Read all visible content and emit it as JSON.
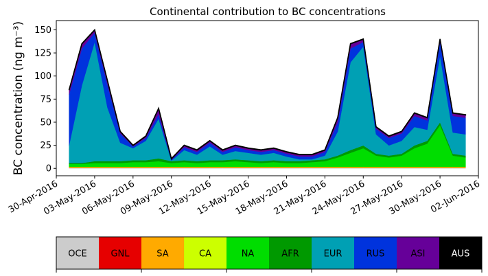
{
  "chart_data": {
    "type": "stacked_area",
    "title": "Continental contribution to BC concentrations",
    "y_label": "BC concentration (ng m⁻³)",
    "x": [
      "2016-05-01",
      "2016-05-02",
      "2016-05-03",
      "2016-05-04",
      "2016-05-05",
      "2016-05-06",
      "2016-05-07",
      "2016-05-08",
      "2016-05-09",
      "2016-05-10",
      "2016-05-11",
      "2016-05-12",
      "2016-05-13",
      "2016-05-14",
      "2016-05-15",
      "2016-05-16",
      "2016-05-17",
      "2016-05-18",
      "2016-05-19",
      "2016-05-20",
      "2016-05-21",
      "2016-05-22",
      "2016-05-23",
      "2016-05-24",
      "2016-05-25",
      "2016-05-26",
      "2016-05-27",
      "2016-05-28",
      "2016-05-29",
      "2016-05-30",
      "2016-05-31",
      "2016-06-01"
    ],
    "xlim": [
      "2016-04-30",
      "2016-06-02"
    ],
    "xticks": [
      {
        "value": "2016-04-30",
        "label": "30-Apr-2016"
      },
      {
        "value": "2016-05-03",
        "label": "03-May-2016"
      },
      {
        "value": "2016-05-06",
        "label": "06-May-2016"
      },
      {
        "value": "2016-05-09",
        "label": "09-May-2016"
      },
      {
        "value": "2016-05-12",
        "label": "12-May-2016"
      },
      {
        "value": "2016-05-15",
        "label": "15-May-2016"
      },
      {
        "value": "2016-05-18",
        "label": "18-May-2016"
      },
      {
        "value": "2016-05-21",
        "label": "21-May-2016"
      },
      {
        "value": "2016-05-24",
        "label": "24-May-2016"
      },
      {
        "value": "2016-05-27",
        "label": "27-May-2016"
      },
      {
        "value": "2016-05-30",
        "label": "30-May-2016"
      },
      {
        "value": "2016-06-02",
        "label": "02-Jun-2016"
      }
    ],
    "ylim": [
      -8,
      160
    ],
    "yticks": [
      0,
      25,
      50,
      75,
      100,
      125,
      150
    ],
    "series": [
      {
        "name": "OCE",
        "color": "#cccccc",
        "values": [
          0.5,
          0.5,
          0.5,
          0.5,
          0.5,
          0.5,
          0.5,
          0.5,
          0.5,
          0.5,
          0.5,
          0.5,
          0.5,
          0.5,
          0.5,
          0.5,
          0.5,
          0.5,
          0.5,
          0.5,
          0.5,
          0.5,
          0.5,
          0.5,
          0.5,
          0.5,
          0.5,
          0.5,
          0.5,
          0.5,
          0.5,
          0.5
        ]
      },
      {
        "name": "GNL",
        "color": "#e60000",
        "values": [
          0.3,
          0.3,
          0.3,
          0.3,
          0.3,
          0.3,
          0.3,
          0.3,
          0.3,
          0.3,
          0.3,
          0.3,
          0.3,
          0.3,
          0.3,
          0.3,
          0.3,
          0.3,
          0.3,
          0.3,
          0.3,
          0.3,
          0.3,
          0.3,
          0.3,
          0.3,
          0.3,
          0.3,
          0.3,
          0.3,
          0.3,
          0.3
        ]
      },
      {
        "name": "SA",
        "color": "#ffaa00",
        "values": [
          0.5,
          0.5,
          0.5,
          0.5,
          0.5,
          0.5,
          0.5,
          0.5,
          0.5,
          0.5,
          0.5,
          0.5,
          0.5,
          0.5,
          0.5,
          0.5,
          0.5,
          0.5,
          0.5,
          0.5,
          0.5,
          0.5,
          0.5,
          0.5,
          0.5,
          0.5,
          0.5,
          0.5,
          0.5,
          0.5,
          0.5,
          0.5
        ]
      },
      {
        "name": "CA",
        "color": "#ccff00",
        "values": [
          0.5,
          0.5,
          0.5,
          0.5,
          0.5,
          0.5,
          0.5,
          0.5,
          0.5,
          0.5,
          0.5,
          0.5,
          0.5,
          0.5,
          0.5,
          0.5,
          0.5,
          0.5,
          0.5,
          0.5,
          0.5,
          0.5,
          0.5,
          0.5,
          0.5,
          0.5,
          0.5,
          0.5,
          0.5,
          0.5,
          0.5,
          0.5
        ]
      },
      {
        "name": "NA",
        "color": "#00dd00",
        "values": [
          3,
          3,
          4,
          4,
          4,
          5,
          5,
          6,
          4,
          5,
          4,
          5,
          5,
          6,
          5,
          4,
          5,
          4,
          4,
          5,
          6,
          10,
          15,
          20,
          12,
          10,
          12,
          20,
          25,
          45,
          12,
          10
        ]
      },
      {
        "name": "AFR",
        "color": "#009900",
        "values": [
          1,
          1,
          2,
          2,
          2,
          2,
          2,
          3,
          2,
          2,
          2,
          2,
          2,
          2,
          2,
          2,
          2,
          2,
          2,
          2,
          2,
          2,
          3,
          3,
          2,
          2,
          2,
          3,
          3,
          3,
          2,
          2
        ]
      },
      {
        "name": "EUR",
        "color": "#00a0b4",
        "values": [
          19,
          84,
          129,
          58,
          20,
          13,
          21,
          43,
          0.5,
          11,
          7,
          15,
          6,
          9,
          8,
          7,
          8,
          5,
          2,
          1,
          4,
          26,
          95,
          107,
          21,
          11,
          14,
          20,
          12,
          72,
          23,
          23
        ]
      },
      {
        "name": "RUS",
        "color": "#0033dd",
        "values": [
          55,
          40,
          10,
          25,
          10,
          2,
          3,
          5,
          1,
          3,
          3,
          4,
          3,
          4,
          3,
          3,
          3,
          3,
          3,
          3,
          4,
          10,
          15,
          5,
          6,
          8,
          8,
          12,
          10,
          15,
          18,
          18
        ]
      },
      {
        "name": "ASI",
        "color": "#660099",
        "values": [
          5,
          5,
          3,
          4,
          2,
          1,
          2,
          6,
          1,
          2,
          2,
          2,
          2,
          2,
          2,
          2,
          2,
          2,
          2,
          2,
          2,
          5,
          5,
          3,
          2,
          2,
          2,
          3,
          3,
          3,
          3,
          3
        ]
      },
      {
        "name": "AUS",
        "color": "#000000",
        "values": [
          0.3,
          0.3,
          0.3,
          0.3,
          0.3,
          0.3,
          0.3,
          0.3,
          0.3,
          0.3,
          0.3,
          0.3,
          0.3,
          0.3,
          0.3,
          0.3,
          0.3,
          0.3,
          0.3,
          0.3,
          0.3,
          0.3,
          0.3,
          0.3,
          0.3,
          0.3,
          0.3,
          0.3,
          0.3,
          0.3,
          0.3,
          0.3
        ]
      }
    ]
  }
}
